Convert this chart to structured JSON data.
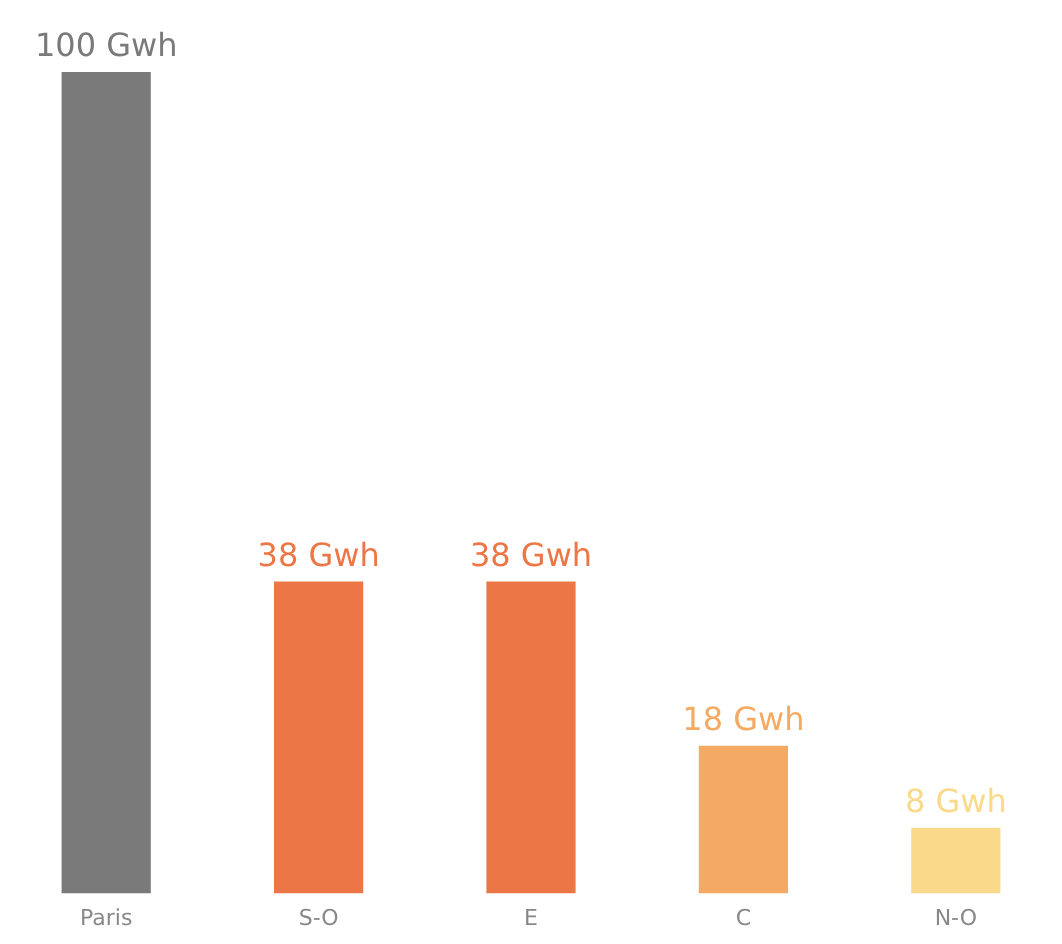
{
  "chart_data": {
    "type": "bar",
    "categories": [
      "Paris",
      "S-O",
      "E",
      "C",
      "N-O"
    ],
    "values": [
      100,
      38,
      38,
      18,
      8
    ],
    "colors": [
      "#7a7a7a",
      "#ec7646",
      "#ec7646",
      "#f5aa63",
      "#fbd98a"
    ],
    "value_labels": [
      "100 Gwh",
      "38 Gwh",
      "38 Gwh",
      "18 Gwh",
      "8 Gwh"
    ],
    "tick_labels": "x",
    "grid": false,
    "legend": false
  }
}
